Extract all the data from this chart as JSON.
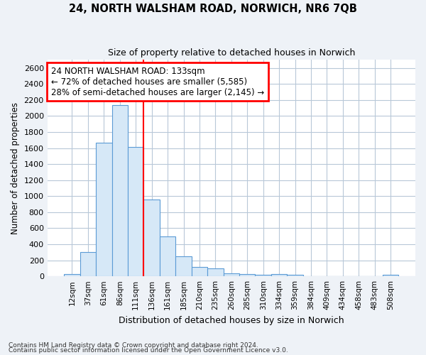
{
  "title": "24, NORTH WALSHAM ROAD, NORWICH, NR6 7QB",
  "subtitle": "Size of property relative to detached houses in Norwich",
  "xlabel": "Distribution of detached houses by size in Norwich",
  "ylabel": "Number of detached properties",
  "bar_color": "#d6e8f7",
  "bar_edge_color": "#5b9bd5",
  "categories": [
    "12sqm",
    "37sqm",
    "61sqm",
    "86sqm",
    "111sqm",
    "136sqm",
    "161sqm",
    "185sqm",
    "210sqm",
    "235sqm",
    "260sqm",
    "285sqm",
    "310sqm",
    "334sqm",
    "359sqm",
    "384sqm",
    "409sqm",
    "434sqm",
    "458sqm",
    "483sqm",
    "508sqm"
  ],
  "values": [
    25,
    300,
    1670,
    2140,
    1610,
    960,
    500,
    250,
    120,
    100,
    40,
    30,
    20,
    25,
    15,
    5,
    5,
    5,
    5,
    2,
    20
  ],
  "ylim": [
    0,
    2700
  ],
  "yticks": [
    0,
    200,
    400,
    600,
    800,
    1000,
    1200,
    1400,
    1600,
    1800,
    2000,
    2200,
    2400,
    2600
  ],
  "vline_x": 5.0,
  "annotation_text": "24 NORTH WALSHAM ROAD: 133sqm\n← 72% of detached houses are smaller (5,585)\n28% of semi-detached houses are larger (2,145) →",
  "annotation_box_color": "white",
  "annotation_box_edge_color": "red",
  "vline_color": "red",
  "footer_line1": "Contains HM Land Registry data © Crown copyright and database right 2024.",
  "footer_line2": "Contains public sector information licensed under the Open Government Licence v3.0.",
  "background_color": "#eef2f7",
  "plot_background_color": "#eef2f7",
  "grid_color": "#b8c8d8",
  "plot_area_color": "white"
}
